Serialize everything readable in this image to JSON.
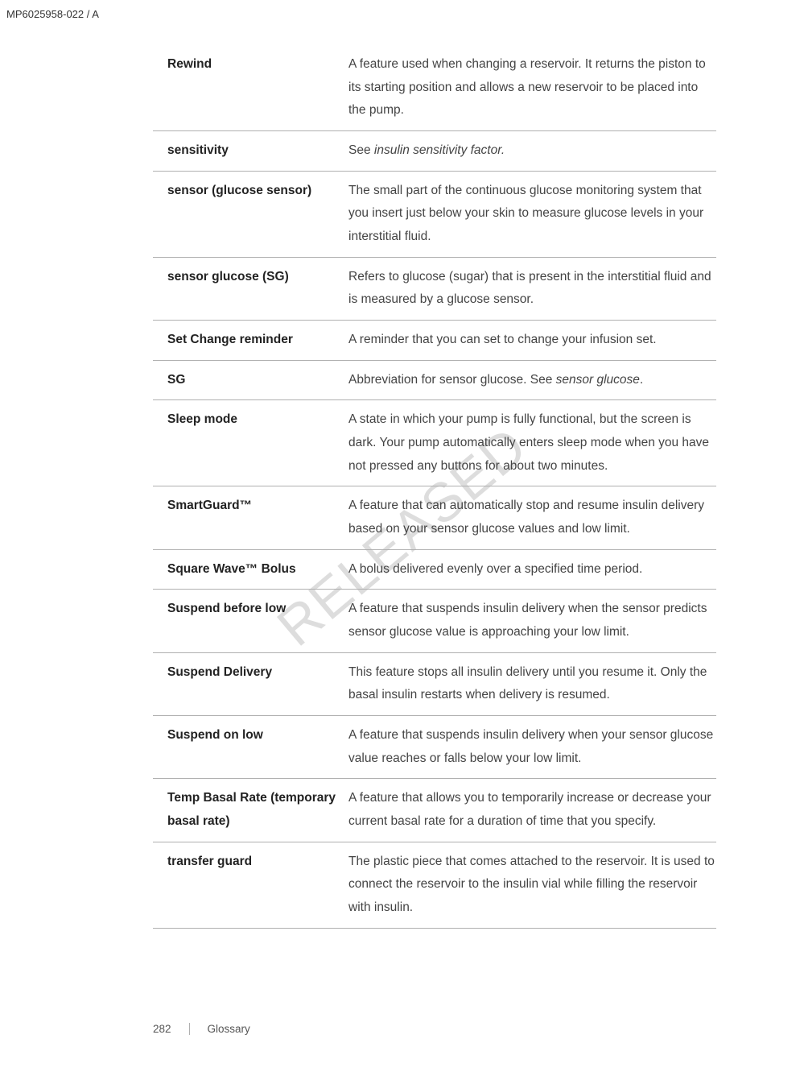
{
  "doc_code": "MP6025958-022 / A",
  "watermark": "RELEASED",
  "glossary": [
    {
      "term": "Rewind",
      "definition": "A feature used when changing a reservoir. It returns the piston to its starting position and allows a new reservoir to be placed into the pump."
    },
    {
      "term": "sensitivity",
      "definition_prefix": "See ",
      "definition_italic": "insulin sensitivity factor.",
      "definition_suffix": ""
    },
    {
      "term": "sensor (glucose sensor)",
      "definition": "The small part of the continuous glucose monitoring system that you insert just below your skin to measure glucose levels in your interstitial fluid."
    },
    {
      "term": "sensor glucose (SG)",
      "definition": "Refers to glucose (sugar) that is present in the interstitial fluid and is measured by a glucose sensor."
    },
    {
      "term": "Set Change reminder",
      "definition": "A reminder that you can set to change your infusion set."
    },
    {
      "term": "SG",
      "definition_prefix": "Abbreviation for sensor glucose. See ",
      "definition_italic": "sensor glucose",
      "definition_suffix": "."
    },
    {
      "term": "Sleep mode",
      "definition": "A state in which your pump is fully functional, but the screen is dark. Your pump automatically enters sleep mode when you have not pressed any buttons for about two minutes."
    },
    {
      "term": "SmartGuard™",
      "definition": "A feature that can automatically stop and resume insulin delivery based on your sensor glucose values and low limit."
    },
    {
      "term": "Square Wave™ Bolus",
      "definition": "A bolus delivered evenly over a specified time period."
    },
    {
      "term": "Suspend before low",
      "definition": "A feature that suspends insulin delivery when the sensor predicts sensor glucose value is approaching your low limit."
    },
    {
      "term": "Suspend Delivery",
      "definition": "This feature stops all insulin delivery until you resume it. Only the basal insulin restarts when delivery is resumed."
    },
    {
      "term": "Suspend on low",
      "definition": "A feature that suspends insulin delivery when your sensor glucose value reaches or falls below your low limit."
    },
    {
      "term": "Temp Basal Rate (temporary basal rate)",
      "definition": "A feature that allows you to temporarily increase or decrease your current basal rate for a duration of time that you specify."
    },
    {
      "term": "transfer guard",
      "definition": "The plastic piece that comes attached to the reservoir. It is used to connect the reservoir to the insulin vial while filling the reservoir with insulin."
    }
  ],
  "footer": {
    "page": "282",
    "section": "Glossary"
  }
}
